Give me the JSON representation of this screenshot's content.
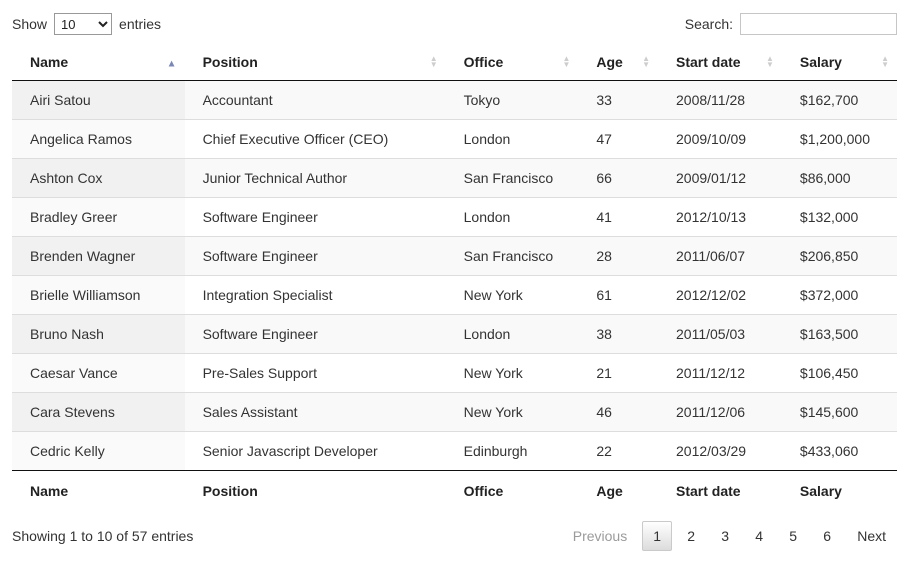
{
  "controls": {
    "show_label": "Show",
    "entries_label": "entries",
    "page_length": "10",
    "search_label": "Search:",
    "search_value": ""
  },
  "table": {
    "columns": [
      {
        "label": "Name",
        "slug": "name",
        "sort": "asc"
      },
      {
        "label": "Position",
        "slug": "position",
        "sort": "both"
      },
      {
        "label": "Office",
        "slug": "office",
        "sort": "both"
      },
      {
        "label": "Age",
        "slug": "age",
        "sort": "both"
      },
      {
        "label": "Start date",
        "slug": "start-date",
        "sort": "both"
      },
      {
        "label": "Salary",
        "slug": "salary",
        "sort": "both"
      }
    ],
    "rows": [
      [
        "Airi Satou",
        "Accountant",
        "Tokyo",
        "33",
        "2008/11/28",
        "$162,700"
      ],
      [
        "Angelica Ramos",
        "Chief Executive Officer (CEO)",
        "London",
        "47",
        "2009/10/09",
        "$1,200,000"
      ],
      [
        "Ashton Cox",
        "Junior Technical Author",
        "San Francisco",
        "66",
        "2009/01/12",
        "$86,000"
      ],
      [
        "Bradley Greer",
        "Software Engineer",
        "London",
        "41",
        "2012/10/13",
        "$132,000"
      ],
      [
        "Brenden Wagner",
        "Software Engineer",
        "San Francisco",
        "28",
        "2011/06/07",
        "$206,850"
      ],
      [
        "Brielle Williamson",
        "Integration Specialist",
        "New York",
        "61",
        "2012/12/02",
        "$372,000"
      ],
      [
        "Bruno Nash",
        "Software Engineer",
        "London",
        "38",
        "2011/05/03",
        "$163,500"
      ],
      [
        "Caesar Vance",
        "Pre-Sales Support",
        "New York",
        "21",
        "2011/12/12",
        "$106,450"
      ],
      [
        "Cara Stevens",
        "Sales Assistant",
        "New York",
        "46",
        "2011/12/06",
        "$145,600"
      ],
      [
        "Cedric Kelly",
        "Senior Javascript Developer",
        "Edinburgh",
        "22",
        "2012/03/29",
        "$433,060"
      ]
    ]
  },
  "footer": {
    "info": "Showing 1 to 10 of 57 entries",
    "pagination": {
      "previous_label": "Previous",
      "pages": [
        "1",
        "2",
        "3",
        "4",
        "5",
        "6"
      ],
      "current_page": "1",
      "next_label": "Next"
    }
  },
  "icons": {
    "sort_ascending": "▲",
    "sort_up": "▲",
    "sort_down": "▼"
  },
  "colors": {
    "sort_active_arrow": "#7a87b7",
    "sort_inactive_arrow": "#cdcdcd",
    "header_border": "#111111",
    "row_border": "#dddddd",
    "stripe_odd": "#f9f9f9",
    "sorted_col_odd": "#f1f1f1",
    "sorted_col_even": "#fafafa",
    "text": "#333333",
    "pagination_disabled": "#9b9b9b",
    "pagination_current_border": "#cacaca",
    "pagination_current_bg_bottom": "#dcdcdc"
  }
}
